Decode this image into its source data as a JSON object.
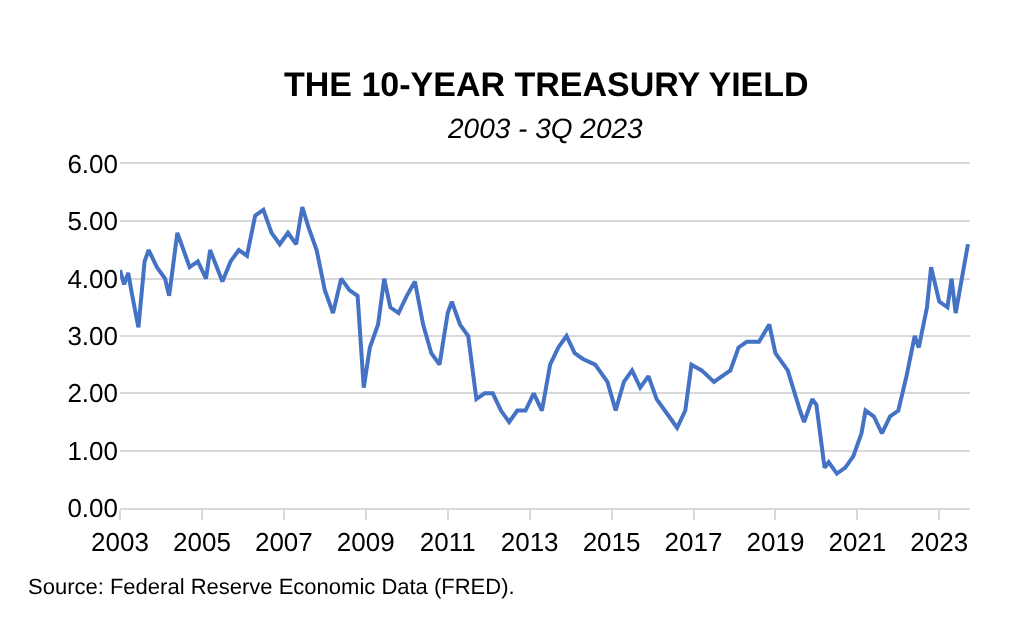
{
  "chart_data": {
    "type": "line",
    "title": "THE 10-YEAR TREASURY YIELD",
    "subtitle": "2003 - 3Q 2023",
    "annotations": [
      "Source: Federal Reserve Economic Data (FRED)."
    ],
    "series": [
      {
        "color": "#4472c4",
        "x": [
          2003.0,
          2003.1,
          2003.2,
          2003.3,
          2003.45,
          2003.6,
          2003.7,
          2003.9,
          2004.1,
          2004.2,
          2004.4,
          2004.5,
          2004.7,
          2004.9,
          2005.1,
          2005.2,
          2005.5,
          2005.7,
          2005.9,
          2006.1,
          2006.3,
          2006.5,
          2006.7,
          2006.9,
          2007.1,
          2007.3,
          2007.45,
          2007.6,
          2007.8,
          2008.0,
          2008.2,
          2008.4,
          2008.6,
          2008.8,
          2008.95,
          2009.1,
          2009.3,
          2009.45,
          2009.6,
          2009.8,
          2010.0,
          2010.2,
          2010.4,
          2010.6,
          2010.8,
          2011.0,
          2011.1,
          2011.3,
          2011.5,
          2011.7,
          2011.9,
          2012.1,
          2012.3,
          2012.5,
          2012.7,
          2012.9,
          2013.1,
          2013.3,
          2013.5,
          2013.7,
          2013.9,
          2014.1,
          2014.3,
          2014.6,
          2014.9,
          2015.1,
          2015.3,
          2015.5,
          2015.7,
          2015.9,
          2016.1,
          2016.4,
          2016.6,
          2016.8,
          2016.95,
          2017.2,
          2017.5,
          2017.7,
          2017.9,
          2018.1,
          2018.3,
          2018.6,
          2018.85,
          2019.0,
          2019.3,
          2019.6,
          2019.7,
          2019.9,
          2020.0,
          2020.2,
          2020.3,
          2020.5,
          2020.7,
          2020.9,
          2021.1,
          2021.2,
          2021.4,
          2021.6,
          2021.8,
          2022.0,
          2022.2,
          2022.4,
          2022.5,
          2022.7,
          2022.8,
          2023.0,
          2023.2,
          2023.3,
          2023.4,
          2023.5,
          2023.7
        ],
        "values": [
          4.15,
          3.9,
          4.1,
          3.7,
          3.15,
          4.3,
          4.5,
          4.2,
          4.0,
          3.7,
          4.8,
          4.6,
          4.2,
          4.3,
          4.0,
          4.5,
          3.95,
          4.3,
          4.5,
          4.4,
          5.1,
          5.2,
          4.8,
          4.6,
          4.8,
          4.6,
          5.25,
          4.9,
          4.5,
          3.8,
          3.4,
          4.0,
          3.8,
          3.7,
          2.1,
          2.8,
          3.2,
          4.0,
          3.5,
          3.4,
          3.7,
          3.95,
          3.2,
          2.7,
          2.5,
          3.4,
          3.6,
          3.2,
          3.0,
          1.9,
          2.0,
          2.0,
          1.7,
          1.5,
          1.7,
          1.7,
          2.0,
          1.7,
          2.5,
          2.8,
          3.0,
          2.7,
          2.6,
          2.5,
          2.2,
          1.7,
          2.2,
          2.4,
          2.1,
          2.3,
          1.9,
          1.6,
          1.4,
          1.7,
          2.5,
          2.4,
          2.2,
          2.3,
          2.4,
          2.8,
          2.9,
          2.9,
          3.2,
          2.7,
          2.4,
          1.7,
          1.5,
          1.9,
          1.8,
          0.7,
          0.8,
          0.6,
          0.7,
          0.9,
          1.3,
          1.7,
          1.6,
          1.3,
          1.6,
          1.7,
          2.3,
          3.0,
          2.8,
          3.5,
          4.2,
          3.6,
          3.5,
          4.0,
          3.4,
          3.8,
          4.6
        ]
      }
    ],
    "xlim": [
      2003,
      2023.75
    ],
    "xticks": [
      2003,
      2005,
      2007,
      2009,
      2011,
      2013,
      2015,
      2017,
      2019,
      2021,
      2023
    ],
    "ylim": [
      0,
      6
    ],
    "yticks": [
      {
        "value": 0,
        "label": "0.00"
      },
      {
        "value": 1,
        "label": "1.00"
      },
      {
        "value": 2,
        "label": "2.00"
      },
      {
        "value": 3,
        "label": "3.00"
      },
      {
        "value": 4,
        "label": "4.00"
      },
      {
        "value": 5,
        "label": "5.00"
      },
      {
        "value": 6,
        "label": "6.00"
      }
    ],
    "grid": "y",
    "marker": "none",
    "line_style": "solid"
  }
}
